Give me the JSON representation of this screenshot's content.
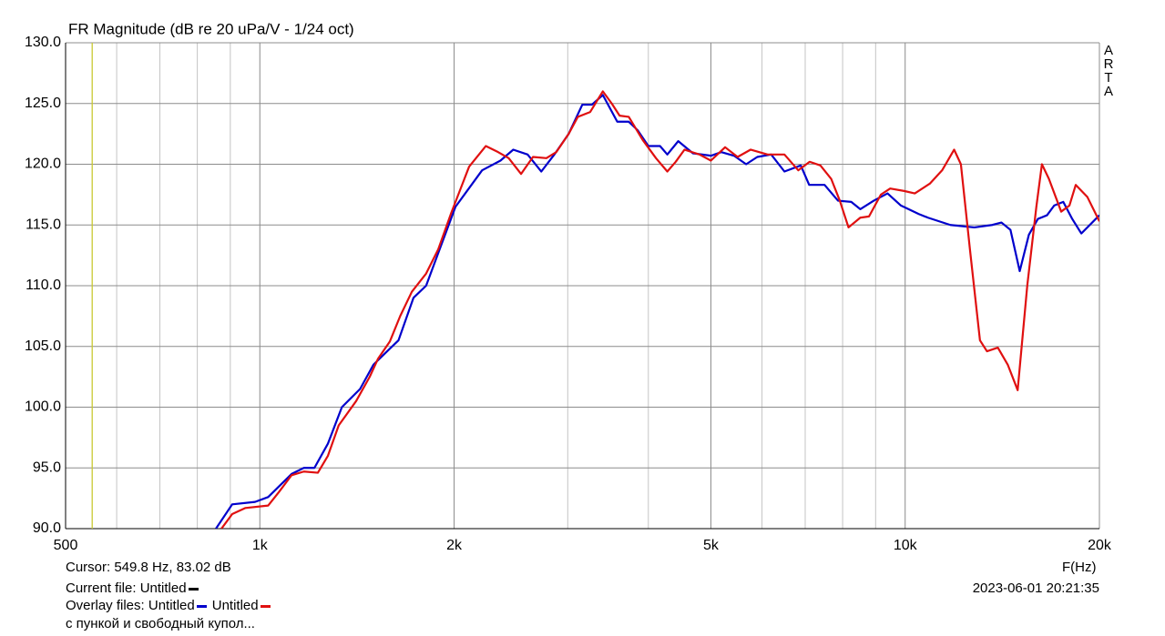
{
  "chart_data": {
    "type": "line",
    "title": "FR Magnitude (dB re 20 uPa/V - 1/24 oct)",
    "watermark": "ARTA",
    "x_label": "F(Hz)",
    "xscale": "log",
    "xlim": [
      500,
      20000
    ],
    "ylim": [
      90,
      130
    ],
    "xticks": [
      500,
      {
        "value": 1000,
        "label": "1k"
      },
      {
        "value": 2000,
        "label": "2k"
      },
      {
        "value": 5000,
        "label": "5k"
      },
      {
        "value": 10000,
        "label": "10k"
      },
      {
        "value": 20000,
        "label": "20k"
      }
    ],
    "xminorticks": [
      600,
      700,
      800,
      900,
      3000,
      4000,
      6000,
      7000,
      8000,
      9000
    ],
    "yticks": [
      {
        "value": 90,
        "label": "90.0"
      },
      {
        "value": 95,
        "label": "95.0"
      },
      {
        "value": 100,
        "label": "100.0"
      },
      {
        "value": 105,
        "label": "105.0"
      },
      {
        "value": 110,
        "label": "110.0"
      },
      {
        "value": 115,
        "label": "115.0"
      },
      {
        "value": 120,
        "label": "120.0"
      },
      {
        "value": 125,
        "label": "125.0"
      },
      {
        "value": 130,
        "label": "130.0"
      }
    ],
    "grid": true,
    "cursor": {
      "label": "Cursor: 549.8 Hz, 83.02 dB",
      "x": 549.8,
      "color": "#c8c832"
    },
    "current_file": {
      "label": "Current file: Untitled",
      "color": "#000000"
    },
    "overlay_label": "Overlay files:",
    "note": "с пункой и свободный купол...",
    "timestamp": "2023-06-01  20:21:35",
    "series": [
      {
        "name": "Untitled",
        "color": "#0000cc",
        "x": [
          855,
          906,
          983,
          1030,
          1120,
          1170,
          1215,
          1275,
          1340,
          1430,
          1500,
          1575,
          1640,
          1730,
          1810,
          1915,
          2010,
          2210,
          2360,
          2470,
          2600,
          2730,
          2860,
          3010,
          3160,
          3270,
          3400,
          3580,
          3730,
          3850,
          4000,
          4170,
          4280,
          4450,
          4690,
          5000,
          5190,
          5430,
          5670,
          5900,
          6200,
          6500,
          6890,
          7100,
          7500,
          7870,
          8250,
          8520,
          8940,
          9390,
          9850,
          10500,
          10850,
          11750,
          12800,
          13640,
          14100,
          14560,
          15050,
          15550,
          16060,
          16590,
          17020,
          17580,
          18150,
          18750,
          20000
        ],
        "values": [
          90,
          92,
          92.2,
          92.6,
          94.5,
          95,
          95,
          97,
          100,
          101.5,
          103.5,
          104.6,
          105.5,
          109,
          110,
          113.5,
          116.5,
          119.5,
          120.3,
          121.2,
          120.8,
          119.4,
          120.8,
          122.5,
          124.9,
          124.9,
          125.7,
          123.5,
          123.5,
          122.8,
          121.5,
          121.5,
          120.8,
          121.9,
          120.9,
          120.7,
          121,
          120.7,
          120,
          120.6,
          120.8,
          119.4,
          119.9,
          118.3,
          118.3,
          117,
          116.9,
          116.3,
          117,
          117.6,
          116.6,
          115.9,
          115.6,
          115,
          114.8,
          115,
          115.2,
          114.6,
          111.2,
          114.2,
          115.5,
          115.8,
          116.6,
          116.9,
          115.5,
          114.3,
          115.8
        ]
      },
      {
        "name": "Untitled",
        "color": "#e01010",
        "x": [
          872,
          906,
          950,
          1030,
          1070,
          1120,
          1170,
          1230,
          1275,
          1325,
          1410,
          1480,
          1525,
          1590,
          1650,
          1720,
          1810,
          1890,
          1980,
          2110,
          2240,
          2340,
          2430,
          2540,
          2650,
          2780,
          2880,
          3010,
          3110,
          3250,
          3400,
          3510,
          3610,
          3730,
          3920,
          4110,
          4280,
          4410,
          4550,
          4800,
          5000,
          5260,
          5500,
          5760,
          6120,
          6500,
          6830,
          7110,
          7390,
          7680,
          7920,
          8170,
          8520,
          8790,
          9170,
          9480,
          9960,
          10350,
          10920,
          11410,
          11910,
          12200,
          12600,
          13060,
          13390,
          13920,
          14420,
          14940,
          15460,
          15970,
          16290,
          16700,
          17450,
          17970,
          18380,
          19160,
          20000
        ],
        "values": [
          90,
          91.2,
          91.7,
          91.9,
          93,
          94.4,
          94.7,
          94.6,
          96,
          98.5,
          100.5,
          102.5,
          104,
          105.4,
          107.5,
          109.5,
          111,
          113,
          116,
          119.8,
          121.5,
          121,
          120.5,
          119.2,
          120.6,
          120.5,
          121,
          122.5,
          123.9,
          124.3,
          126,
          125,
          124,
          123.9,
          122,
          120.5,
          119.4,
          120.2,
          121.2,
          120.8,
          120.3,
          121.4,
          120.6,
          121.2,
          120.8,
          120.8,
          119.5,
          120.2,
          119.9,
          118.8,
          117,
          114.8,
          115.6,
          115.7,
          117.5,
          118,
          117.8,
          117.6,
          118.4,
          119.5,
          121.2,
          120,
          113,
          105.5,
          104.6,
          104.9,
          103.5,
          101.4,
          110,
          116.5,
          120,
          118.8,
          116.1,
          116.6,
          118.3,
          117.3,
          115.3
        ]
      }
    ]
  }
}
